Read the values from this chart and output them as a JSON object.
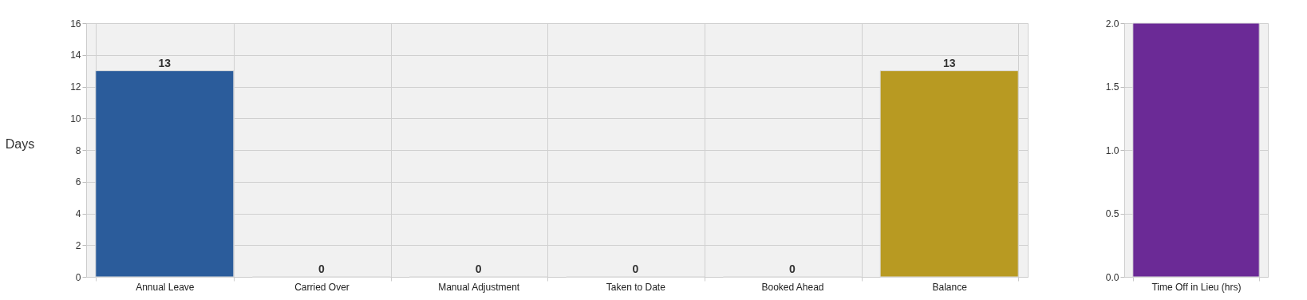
{
  "chart_data": [
    {
      "type": "bar",
      "ylabel": "Days",
      "categories": [
        "Annual Leave",
        "Carried Over",
        "Manual Adjustment",
        "Taken to Date",
        "Booked Ahead",
        "Balance"
      ],
      "values": [
        13,
        0,
        0,
        0,
        0,
        13
      ],
      "colors": [
        "#2b5c9b",
        null,
        null,
        null,
        null,
        "#b89a22"
      ],
      "ylim": [
        0,
        16
      ],
      "yticks": [
        0,
        2,
        4,
        6,
        8,
        10,
        12,
        14,
        16
      ],
      "grid": true,
      "data_labels": true
    },
    {
      "type": "bar",
      "categories": [
        "Time Off in Lieu (hrs)"
      ],
      "values": [
        2
      ],
      "colors": [
        "#6b2a96"
      ],
      "ylim": [
        0,
        2
      ],
      "yticks": [
        {
          "value": 0,
          "label": "0.0"
        },
        {
          "value": 0.5,
          "label": "0.5"
        },
        {
          "value": 1,
          "label": "1.0"
        },
        {
          "value": 1.5,
          "label": "1.5"
        },
        {
          "value": 2,
          "label": "2.0"
        }
      ],
      "grid": true
    }
  ]
}
